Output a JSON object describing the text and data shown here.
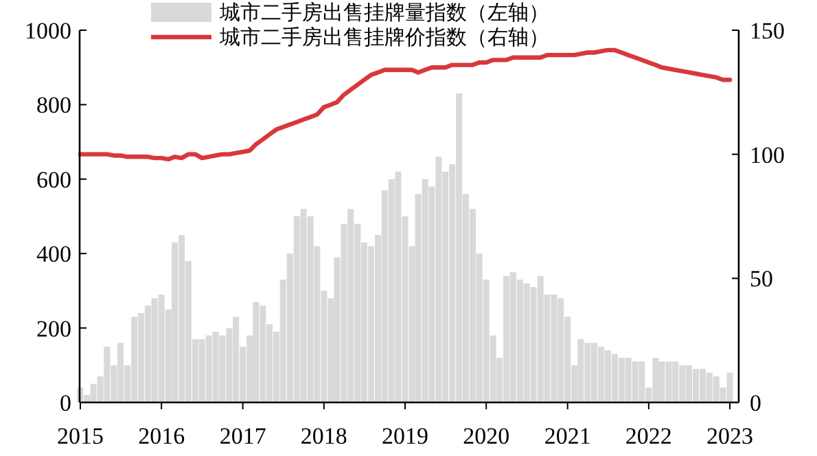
{
  "chart_data": {
    "type": "bar",
    "x": [
      "2015-01",
      "2015-02",
      "2015-03",
      "2015-04",
      "2015-05",
      "2015-06",
      "2015-07",
      "2015-08",
      "2015-09",
      "2015-10",
      "2015-11",
      "2015-12",
      "2016-01",
      "2016-02",
      "2016-03",
      "2016-04",
      "2016-05",
      "2016-06",
      "2016-07",
      "2016-08",
      "2016-09",
      "2016-10",
      "2016-11",
      "2016-12",
      "2017-01",
      "2017-02",
      "2017-03",
      "2017-04",
      "2017-05",
      "2017-06",
      "2017-07",
      "2017-08",
      "2017-09",
      "2017-10",
      "2017-11",
      "2017-12",
      "2018-01",
      "2018-02",
      "2018-03",
      "2018-04",
      "2018-05",
      "2018-06",
      "2018-07",
      "2018-08",
      "2018-09",
      "2018-10",
      "2018-11",
      "2018-12",
      "2019-01",
      "2019-02",
      "2019-03",
      "2019-04",
      "2019-05",
      "2019-06",
      "2019-07",
      "2019-08",
      "2019-09",
      "2019-10",
      "2019-11",
      "2019-12",
      "2020-01",
      "2020-02",
      "2020-03",
      "2020-04",
      "2020-05",
      "2020-06",
      "2020-07",
      "2020-08",
      "2020-09",
      "2020-10",
      "2020-11",
      "2020-12",
      "2021-01",
      "2021-02",
      "2021-03",
      "2021-04",
      "2021-05",
      "2021-06",
      "2021-07",
      "2021-08",
      "2021-09",
      "2021-10",
      "2021-11",
      "2021-12",
      "2022-01",
      "2022-02",
      "2022-03",
      "2022-04",
      "2022-05",
      "2022-06",
      "2022-07",
      "2022-08",
      "2022-09",
      "2022-10",
      "2022-11",
      "2022-12",
      "2023-01"
    ],
    "series": [
      {
        "name": "城市二手房出售挂牌量指数（左轴）",
        "color": "#d9d9d9",
        "values": [
          40,
          20,
          50,
          70,
          150,
          100,
          160,
          100,
          230,
          240,
          260,
          280,
          290,
          250,
          430,
          450,
          380,
          170,
          170,
          180,
          190,
          180,
          200,
          230,
          150,
          180,
          270,
          260,
          210,
          190,
          330,
          400,
          500,
          520,
          500,
          420,
          300,
          280,
          390,
          480,
          520,
          480,
          430,
          420,
          450,
          570,
          600,
          620,
          500,
          420,
          560,
          600,
          580,
          660,
          620,
          640,
          830,
          560,
          520,
          400,
          330,
          180,
          120,
          340,
          350,
          330,
          320,
          310,
          340,
          290,
          290,
          280,
          230,
          100,
          170,
          160,
          160,
          150,
          140,
          130,
          120,
          120,
          110,
          110,
          40,
          120,
          110,
          110,
          110,
          100,
          100,
          90,
          90,
          80,
          70,
          40,
          80
        ]
      },
      {
        "name": "城市二手房出售挂牌价指数（右轴）",
        "type": "line",
        "axis": "y2",
        "color": "#d9383a",
        "values": [
          100,
          100,
          100,
          100,
          100,
          99.5,
          99.5,
          99,
          99,
          99,
          99,
          98.5,
          98.5,
          98,
          99,
          98.5,
          100,
          100,
          98.5,
          99,
          99.5,
          100,
          100,
          100.5,
          101,
          101.5,
          104,
          106,
          108,
          110,
          111,
          112,
          113,
          114,
          115,
          116,
          119,
          120,
          121,
          124,
          126,
          128,
          130,
          132,
          133,
          134,
          134,
          134,
          134,
          134,
          133,
          134,
          135,
          135,
          135,
          136,
          136,
          136,
          136,
          137,
          137,
          138,
          138,
          138,
          139,
          139,
          139,
          139,
          139,
          140,
          140,
          140,
          140,
          140,
          140.5,
          141,
          141,
          141.5,
          142,
          142,
          141,
          140,
          139,
          138,
          137,
          136,
          135,
          134.5,
          134,
          133.5,
          133,
          132.5,
          132,
          131.5,
          131,
          130,
          130
        ]
      }
    ],
    "xlim": [
      "2014-12-29",
      "2023-02-10"
    ],
    "xticks": [
      "2015",
      "2016",
      "2017",
      "2018",
      "2019",
      "2020",
      "2021",
      "2022",
      "2023"
    ],
    "ylim": [
      0,
      1000
    ],
    "yticks": [
      0,
      200,
      400,
      600,
      800,
      1000
    ],
    "y2lim": [
      0,
      150
    ],
    "y2ticks": [
      0,
      50,
      100,
      150
    ],
    "legend": "top",
    "grid": false
  }
}
